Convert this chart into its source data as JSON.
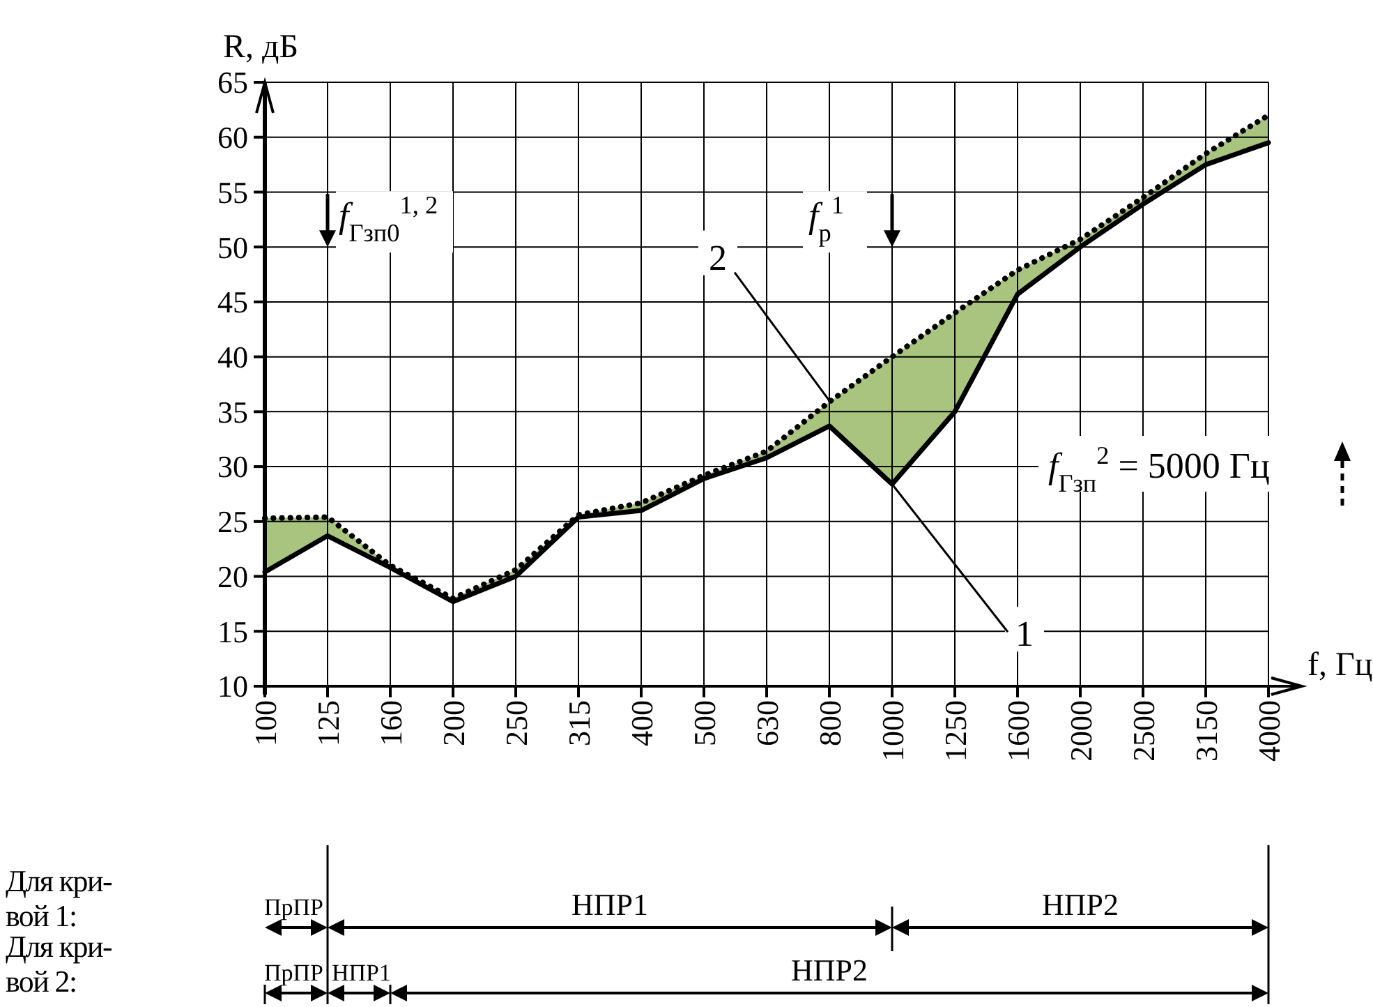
{
  "chart_data": {
    "type": "line",
    "ylabel": "R, дБ",
    "xlabel": "f, Гц",
    "categories": [
      "100",
      "125",
      "160",
      "200",
      "250",
      "315",
      "400",
      "500",
      "630",
      "800",
      "1000",
      "1250",
      "1600",
      "2000",
      "2500",
      "3150",
      "4000"
    ],
    "ylim": [
      10,
      65
    ],
    "yticks": [
      10,
      15,
      20,
      25,
      30,
      35,
      40,
      45,
      50,
      55,
      60,
      65
    ],
    "grid": true,
    "series": [
      {
        "color": "#000000",
        "line_style": "solid",
        "values": [
          20.4,
          23.7,
          20.8,
          17.7,
          20,
          25.4,
          26,
          28.9,
          30.8,
          33.7,
          28.4,
          35,
          45.7,
          50,
          53.9,
          57.5,
          59.5
        ]
      },
      {
        "color": "#000000",
        "line_style": "dotted",
        "values": [
          25.3,
          25.4,
          21,
          18,
          20.6,
          25.6,
          26.7,
          29.2,
          31.4,
          35.9,
          40,
          44,
          47.9,
          50.7,
          54.5,
          58.5,
          62
        ],
        "lower": [
          20.4,
          23.7,
          20.8,
          17.7,
          20,
          25.4,
          26,
          28.9,
          30.8,
          33.7,
          28.4,
          35,
          45.7,
          50,
          53.9,
          57.5,
          59.5
        ],
        "upper": [
          25.3,
          25.4,
          21,
          18,
          20.6,
          25.6,
          26.7,
          29.2,
          31.4,
          35.9,
          40,
          44,
          47.9,
          50.7,
          54.5,
          58.5,
          62
        ]
      }
    ],
    "annotations": [
      "f$_{Гзп0}$$^{1, 2}$",
      "f$_{р}$$^{1}$",
      "f$_{Гзп}$$^{2}$ = 5000 Гц",
      {
        "text": "1",
        "x": "1000",
        "y": 28.4
      },
      {
        "text": "2",
        "x": "800",
        "y": 36
      },
      "Для кри-вой 1:",
      "ПрПР",
      "НПР1",
      "НПР2",
      "Для кри-вой 2:",
      "ПрПР",
      "НПР1",
      "НПР2"
    ]
  }
}
